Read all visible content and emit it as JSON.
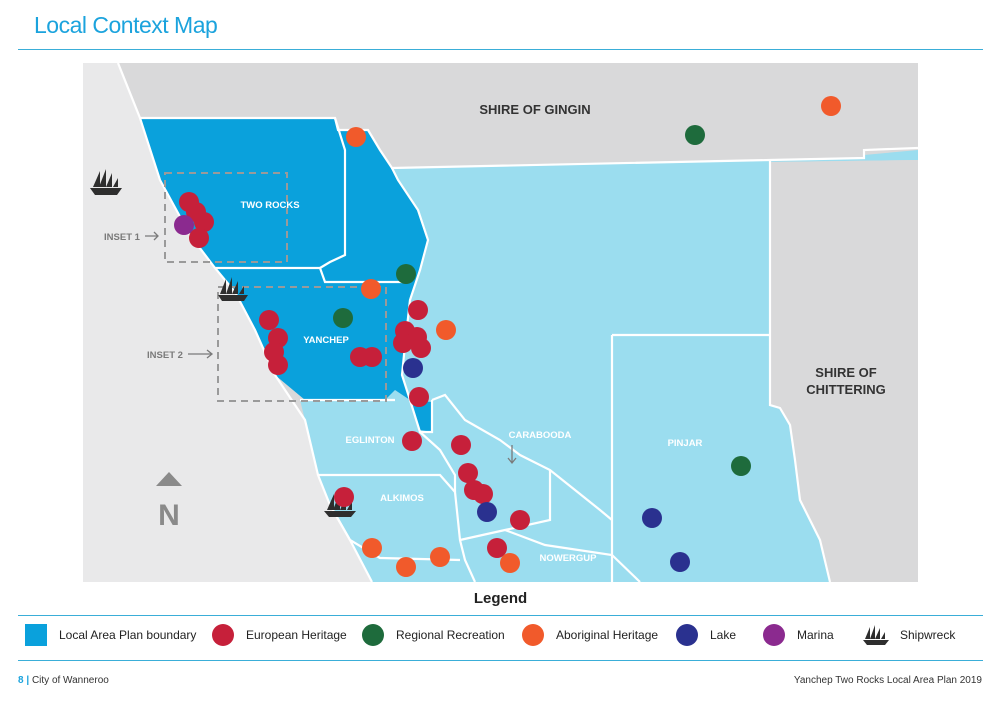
{
  "title": "Local Context Map",
  "map": {
    "labels": {
      "gingin": "SHIRE OF GINGIN",
      "chittering_1": "SHIRE OF",
      "chittering_2": "CHITTERING",
      "two_rocks": "TWO ROCKS",
      "yanchep": "YANCHEP",
      "eglinton": "EGLINTON",
      "alkimos": "ALKIMOS",
      "carabooda": "CARABOODA",
      "pinjar": "PINJAR",
      "nowergup": "NOWERGUP",
      "inset1": "INSET 1",
      "inset2": "INSET 2",
      "north": "N"
    },
    "colors": {
      "lap": "#0aa1dc",
      "region": "#9bddef",
      "shire": "#d9d9da",
      "ocean": "#e9e9ea",
      "european": "#c6203a",
      "recreation": "#1e6b3c",
      "aboriginal": "#f15a2b",
      "lake": "#2a318f",
      "marina": "#8b2a8f"
    }
  },
  "legend": {
    "title": "Legend",
    "items": [
      {
        "label": "Local Area Plan boundary",
        "color": "#0aa1dc",
        "kind": "square"
      },
      {
        "label": "European Heritage",
        "color": "#c6203a",
        "kind": "dot"
      },
      {
        "label": "Regional Recreation",
        "color": "#1e6b3c",
        "kind": "dot"
      },
      {
        "label": "Aboriginal Heritage",
        "color": "#f15a2b",
        "kind": "dot"
      },
      {
        "label": "Lake",
        "color": "#2a318f",
        "kind": "dot"
      },
      {
        "label": "Marina",
        "color": "#8b2a8f",
        "kind": "dot"
      },
      {
        "label": "Shipwreck",
        "color": "#333333",
        "kind": "ship"
      }
    ]
  },
  "footer": {
    "page_number": "8",
    "separator": "|",
    "organisation": "City of Wanneroo",
    "document": "Yanchep Two Rocks Local Area Plan 2019"
  }
}
